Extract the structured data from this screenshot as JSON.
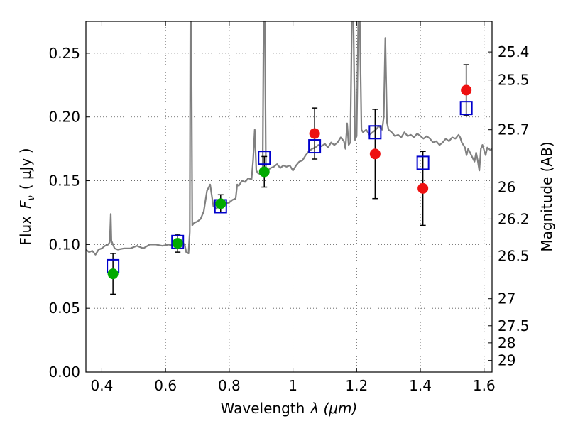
{
  "chart_data": {
    "type": "scatter",
    "xlabel_text": "Wavelength",
    "xlabel_math": "λ (μm)",
    "ylabel_text": "Flux",
    "ylabel_math": "F",
    "ylabel_sub": "ν",
    "ylabel_unit": "( μJy )",
    "y2label": "Magnitude (AB)",
    "xlim": [
      0.35,
      1.625
    ],
    "ylim": [
      0.0,
      0.275
    ],
    "grid": true,
    "x_ticks": [
      0.4,
      0.6,
      0.8,
      1.0,
      1.2,
      1.4,
      1.6
    ],
    "x_tick_labels": [
      "0.4",
      "0.6",
      "0.8",
      "1",
      "1.2",
      "1.4",
      "1.6"
    ],
    "y_ticks": [
      0.0,
      0.05,
      0.1,
      0.15,
      0.2,
      0.25
    ],
    "y_tick_labels": [
      "0.00",
      "0.05",
      "0.10",
      "0.15",
      "0.20",
      "0.25"
    ],
    "mag_ticks": [
      {
        "label": "25.4",
        "flux": 0.251
      },
      {
        "label": "25.5",
        "flux": 0.229
      },
      {
        "label": "25.7",
        "flux": 0.19
      },
      {
        "label": "26",
        "flux": 0.145
      },
      {
        "label": "26.2",
        "flux": 0.12
      },
      {
        "label": "26.5",
        "flux": 0.091
      },
      {
        "label": "27",
        "flux": 0.0575
      },
      {
        "label": "27.5",
        "flux": 0.0363
      },
      {
        "label": "28",
        "flux": 0.0229
      },
      {
        "label": "29",
        "flux": 0.0091
      }
    ],
    "spectrum": {
      "color": "#808080",
      "points": [
        [
          0.35,
          0.096
        ],
        [
          0.36,
          0.094
        ],
        [
          0.37,
          0.095
        ],
        [
          0.38,
          0.092
        ],
        [
          0.39,
          0.096
        ],
        [
          0.4,
          0.097
        ],
        [
          0.41,
          0.099
        ],
        [
          0.42,
          0.1
        ],
        [
          0.425,
          0.102
        ],
        [
          0.428,
          0.124
        ],
        [
          0.43,
          0.103
        ],
        [
          0.44,
          0.097
        ],
        [
          0.45,
          0.096
        ],
        [
          0.47,
          0.097
        ],
        [
          0.49,
          0.097
        ],
        [
          0.51,
          0.099
        ],
        [
          0.53,
          0.097
        ],
        [
          0.55,
          0.1
        ],
        [
          0.57,
          0.1
        ],
        [
          0.59,
          0.099
        ],
        [
          0.61,
          0.1
        ],
        [
          0.625,
          0.099
        ],
        [
          0.64,
          0.098
        ],
        [
          0.65,
          0.102
        ],
        [
          0.66,
          0.1
        ],
        [
          0.665,
          0.094
        ],
        [
          0.672,
          0.093
        ],
        [
          0.676,
          0.11
        ],
        [
          0.678,
          0.275
        ],
        [
          0.681,
          0.275
        ],
        [
          0.684,
          0.115
        ],
        [
          0.69,
          0.117
        ],
        [
          0.7,
          0.118
        ],
        [
          0.71,
          0.12
        ],
        [
          0.72,
          0.126
        ],
        [
          0.73,
          0.142
        ],
        [
          0.74,
          0.147
        ],
        [
          0.75,
          0.13
        ],
        [
          0.76,
          0.128
        ],
        [
          0.77,
          0.132
        ],
        [
          0.78,
          0.134
        ],
        [
          0.79,
          0.132
        ],
        [
          0.8,
          0.133
        ],
        [
          0.81,
          0.135
        ],
        [
          0.82,
          0.136
        ],
        [
          0.825,
          0.147
        ],
        [
          0.83,
          0.146
        ],
        [
          0.84,
          0.15
        ],
        [
          0.85,
          0.149
        ],
        [
          0.86,
          0.152
        ],
        [
          0.87,
          0.151
        ],
        [
          0.875,
          0.166
        ],
        [
          0.88,
          0.19
        ],
        [
          0.885,
          0.158
        ],
        [
          0.89,
          0.156
        ],
        [
          0.9,
          0.155
        ],
        [
          0.905,
          0.16
        ],
        [
          0.908,
          0.275
        ],
        [
          0.912,
          0.275
        ],
        [
          0.915,
          0.16
        ],
        [
          0.92,
          0.158
        ],
        [
          0.93,
          0.16
        ],
        [
          0.94,
          0.161
        ],
        [
          0.95,
          0.163
        ],
        [
          0.96,
          0.16
        ],
        [
          0.97,
          0.162
        ],
        [
          0.98,
          0.161
        ],
        [
          0.99,
          0.162
        ],
        [
          1.0,
          0.158
        ],
        [
          1.01,
          0.162
        ],
        [
          1.02,
          0.165
        ],
        [
          1.03,
          0.166
        ],
        [
          1.04,
          0.17
        ],
        [
          1.05,
          0.173
        ],
        [
          1.06,
          0.175
        ],
        [
          1.07,
          0.176
        ],
        [
          1.08,
          0.178
        ],
        [
          1.09,
          0.177
        ],
        [
          1.1,
          0.179
        ],
        [
          1.11,
          0.176
        ],
        [
          1.12,
          0.18
        ],
        [
          1.13,
          0.178
        ],
        [
          1.14,
          0.18
        ],
        [
          1.15,
          0.184
        ],
        [
          1.16,
          0.181
        ],
        [
          1.165,
          0.175
        ],
        [
          1.17,
          0.195
        ],
        [
          1.175,
          0.178
        ],
        [
          1.18,
          0.18
        ],
        [
          1.185,
          0.275
        ],
        [
          1.19,
          0.275
        ],
        [
          1.195,
          0.182
        ],
        [
          1.2,
          0.185
        ],
        [
          1.205,
          0.275
        ],
        [
          1.21,
          0.275
        ],
        [
          1.215,
          0.19
        ],
        [
          1.22,
          0.188
        ],
        [
          1.23,
          0.19
        ],
        [
          1.24,
          0.186
        ],
        [
          1.25,
          0.188
        ],
        [
          1.26,
          0.19
        ],
        [
          1.27,
          0.193
        ],
        [
          1.28,
          0.19
        ],
        [
          1.285,
          0.2
        ],
        [
          1.29,
          0.262
        ],
        [
          1.295,
          0.196
        ],
        [
          1.3,
          0.19
        ],
        [
          1.31,
          0.188
        ],
        [
          1.32,
          0.185
        ],
        [
          1.33,
          0.186
        ],
        [
          1.34,
          0.184
        ],
        [
          1.35,
          0.188
        ],
        [
          1.36,
          0.185
        ],
        [
          1.37,
          0.186
        ],
        [
          1.38,
          0.184
        ],
        [
          1.39,
          0.187
        ],
        [
          1.4,
          0.185
        ],
        [
          1.41,
          0.183
        ],
        [
          1.42,
          0.185
        ],
        [
          1.43,
          0.183
        ],
        [
          1.44,
          0.18
        ],
        [
          1.45,
          0.181
        ],
        [
          1.46,
          0.178
        ],
        [
          1.47,
          0.18
        ],
        [
          1.48,
          0.183
        ],
        [
          1.49,
          0.181
        ],
        [
          1.5,
          0.184
        ],
        [
          1.51,
          0.183
        ],
        [
          1.52,
          0.186
        ],
        [
          1.525,
          0.184
        ],
        [
          1.53,
          0.18
        ],
        [
          1.54,
          0.176
        ],
        [
          1.545,
          0.17
        ],
        [
          1.55,
          0.175
        ],
        [
          1.56,
          0.17
        ],
        [
          1.57,
          0.165
        ],
        [
          1.575,
          0.172
        ],
        [
          1.58,
          0.166
        ],
        [
          1.585,
          0.158
        ],
        [
          1.59,
          0.175
        ],
        [
          1.595,
          0.178
        ],
        [
          1.6,
          0.174
        ],
        [
          1.605,
          0.17
        ],
        [
          1.61,
          0.176
        ],
        [
          1.615,
          0.175
        ],
        [
          1.62,
          0.174
        ],
        [
          1.625,
          0.175
        ]
      ]
    },
    "series": [
      {
        "marker": "square-open",
        "color": "#0000cc",
        "x": [
          0.435,
          0.638,
          0.773,
          0.91,
          1.068,
          1.258,
          1.408,
          1.544
        ],
        "y": [
          0.083,
          0.102,
          0.13,
          0.168,
          0.177,
          0.188,
          0.164,
          0.207
        ]
      },
      {
        "marker": "circle",
        "color": "#00aa00",
        "x": [
          0.435,
          0.638,
          0.773,
          0.91
        ],
        "y": [
          0.077,
          0.101,
          0.132,
          0.157
        ],
        "yerr": [
          0.016,
          0.007,
          0.007,
          0.012
        ]
      },
      {
        "marker": "circle",
        "color": "#ee1111",
        "x": [
          1.068,
          1.258,
          1.408,
          1.544
        ],
        "y": [
          0.187,
          0.171,
          0.144,
          0.221
        ],
        "yerr": [
          0.02,
          0.035,
          0.029,
          0.02
        ]
      }
    ]
  }
}
